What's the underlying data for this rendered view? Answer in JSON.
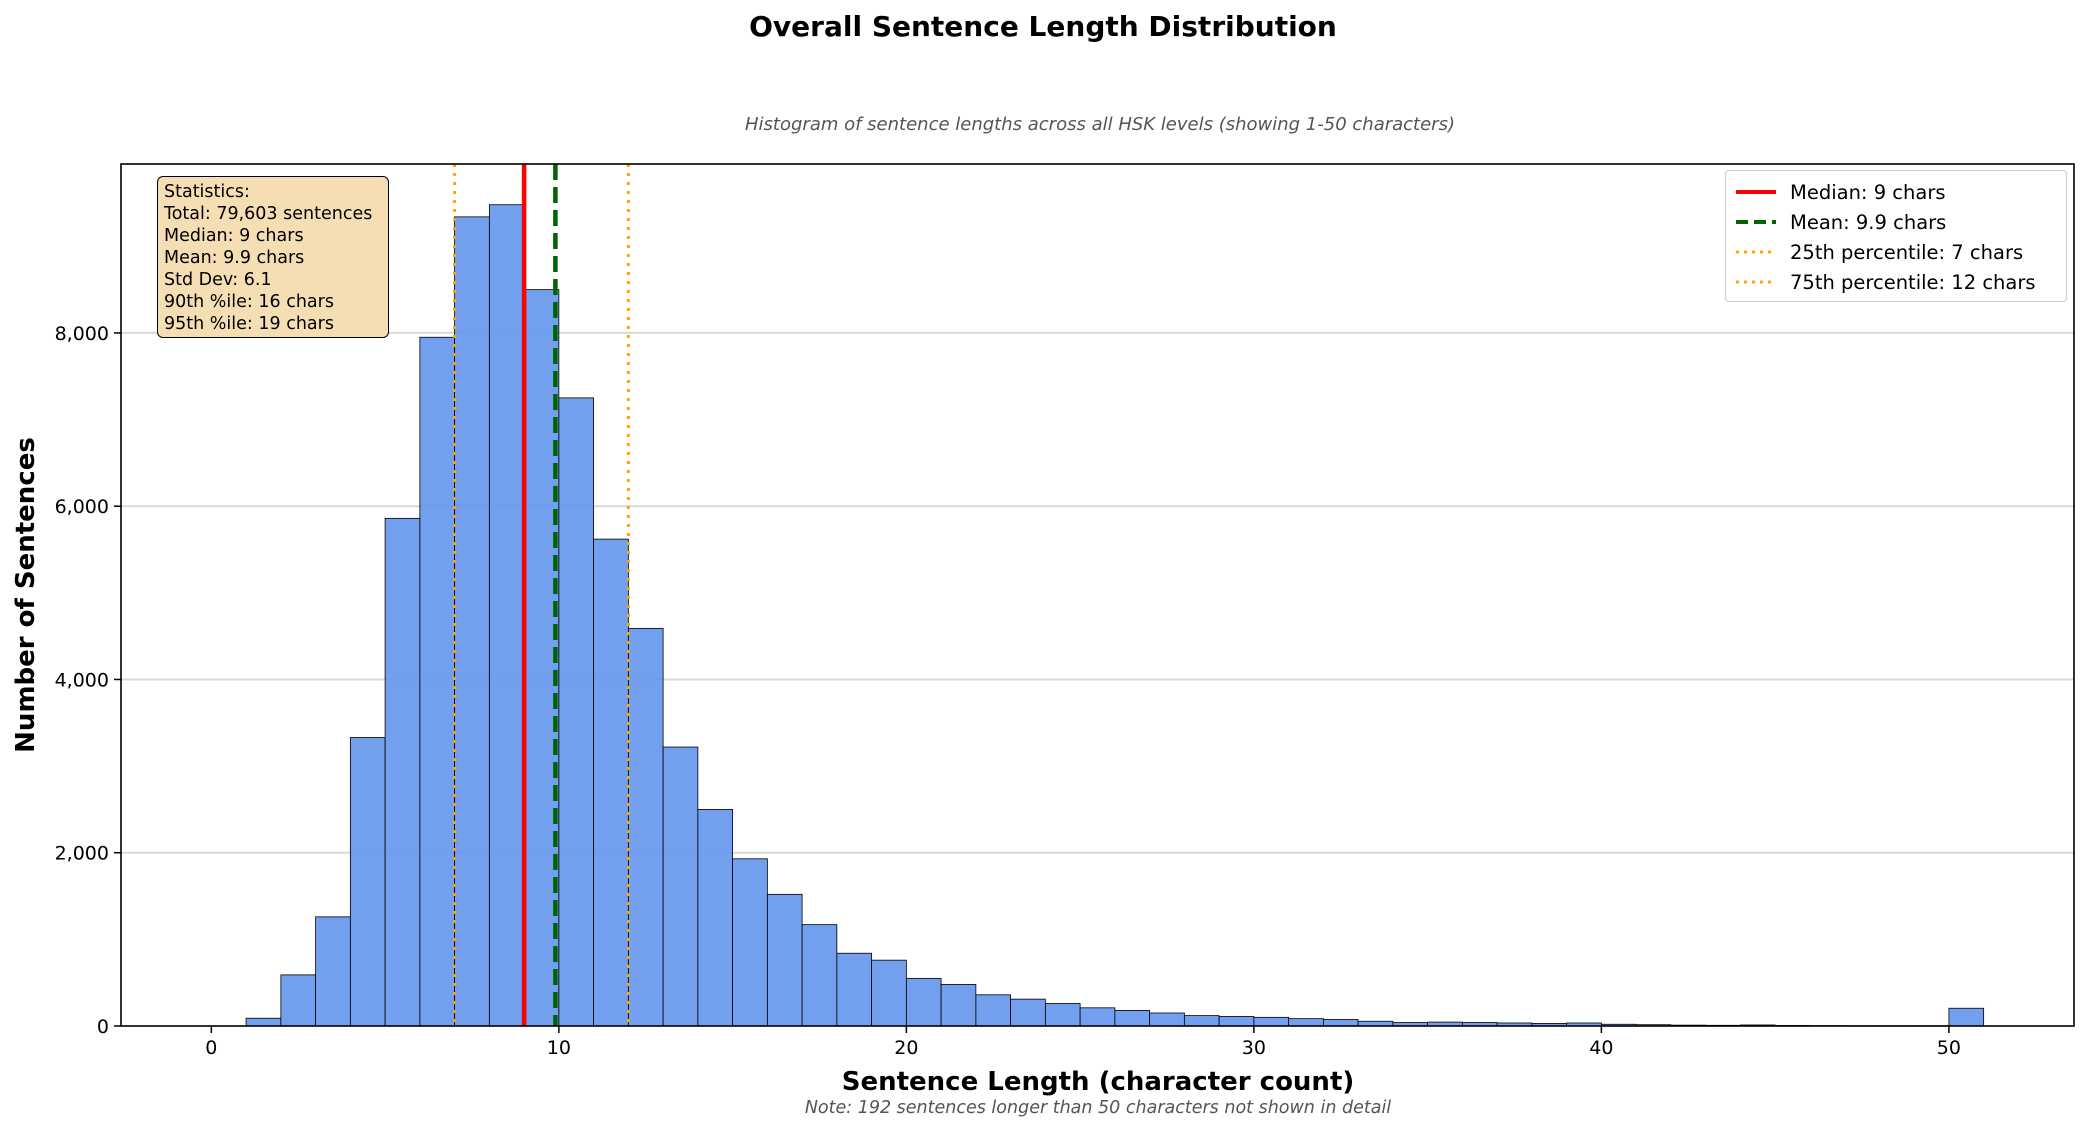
{
  "chart_data": {
    "type": "bar",
    "title": "Overall Sentence Length Distribution",
    "subtitle": "Histogram of sentence lengths across all HSK levels (showing 1-50 characters)",
    "xlabel": "Sentence Length (character count)",
    "ylabel": "Number of Sentences",
    "note": "Note: 192 sentences longer than 50 characters not shown in detail",
    "xlim": [
      -2.6,
      53.6
    ],
    "ylim": [
      0,
      9950
    ],
    "x_ticks": [
      0,
      10,
      20,
      30,
      40,
      50
    ],
    "y_ticks": [
      0,
      2000,
      4000,
      6000,
      8000
    ],
    "y_tick_labels": [
      "0",
      "2,000",
      "4,000",
      "6,000",
      "8,000"
    ],
    "grid": "horizontal",
    "bin_width": 1,
    "bins": [
      {
        "x": 1,
        "count": 90
      },
      {
        "x": 2,
        "count": 590
      },
      {
        "x": 3,
        "count": 1260
      },
      {
        "x": 4,
        "count": 3330
      },
      {
        "x": 5,
        "count": 5860
      },
      {
        "x": 6,
        "count": 7950
      },
      {
        "x": 7,
        "count": 9340
      },
      {
        "x": 8,
        "count": 9480
      },
      {
        "x": 9,
        "count": 8500
      },
      {
        "x": 10,
        "count": 7250
      },
      {
        "x": 11,
        "count": 5620
      },
      {
        "x": 12,
        "count": 4590
      },
      {
        "x": 13,
        "count": 3220
      },
      {
        "x": 14,
        "count": 2500
      },
      {
        "x": 15,
        "count": 1930
      },
      {
        "x": 16,
        "count": 1520
      },
      {
        "x": 17,
        "count": 1170
      },
      {
        "x": 18,
        "count": 840
      },
      {
        "x": 19,
        "count": 760
      },
      {
        "x": 20,
        "count": 550
      },
      {
        "x": 21,
        "count": 480
      },
      {
        "x": 22,
        "count": 360
      },
      {
        "x": 23,
        "count": 310
      },
      {
        "x": 24,
        "count": 260
      },
      {
        "x": 25,
        "count": 210
      },
      {
        "x": 26,
        "count": 180
      },
      {
        "x": 27,
        "count": 150
      },
      {
        "x": 28,
        "count": 120
      },
      {
        "x": 29,
        "count": 110
      },
      {
        "x": 30,
        "count": 100
      },
      {
        "x": 31,
        "count": 85
      },
      {
        "x": 32,
        "count": 75
      },
      {
        "x": 33,
        "count": 55
      },
      {
        "x": 34,
        "count": 40
      },
      {
        "x": 35,
        "count": 45
      },
      {
        "x": 36,
        "count": 40
      },
      {
        "x": 37,
        "count": 35
      },
      {
        "x": 38,
        "count": 30
      },
      {
        "x": 39,
        "count": 35
      },
      {
        "x": 40,
        "count": 20
      },
      {
        "x": 41,
        "count": 15
      },
      {
        "x": 42,
        "count": 10
      },
      {
        "x": 43,
        "count": 8
      },
      {
        "x": 44,
        "count": 12
      },
      {
        "x": 45,
        "count": 6
      },
      {
        "x": 46,
        "count": 4
      },
      {
        "x": 47,
        "count": 3
      },
      {
        "x": 48,
        "count": 3
      },
      {
        "x": 49,
        "count": 3
      },
      {
        "x": 50,
        "count": 205
      }
    ],
    "reference_lines": [
      {
        "label": "Median: 9 chars",
        "x": 9,
        "color": "#ff0000",
        "style": "solid"
      },
      {
        "label": "Mean: 9.9 chars",
        "x": 9.9,
        "color": "#006400",
        "style": "dashed"
      },
      {
        "label": "25th percentile: 7 chars",
        "x": 7,
        "color": "#ffa500",
        "style": "dotted"
      },
      {
        "label": "75th percentile: 12 chars",
        "x": 12,
        "color": "#ffa500",
        "style": "dotted"
      }
    ],
    "bar_color": "#6495ed",
    "bar_edge_color": "#000000",
    "legend_position": "top-right",
    "stats_box": {
      "position": "top-left",
      "lines": [
        "Statistics:",
        "Total: 79,603 sentences",
        "Median: 9 chars",
        "Mean: 9.9 chars",
        "Std Dev: 6.1",
        "90th %ile: 16 chars",
        "95th %ile: 19 chars"
      ]
    }
  }
}
